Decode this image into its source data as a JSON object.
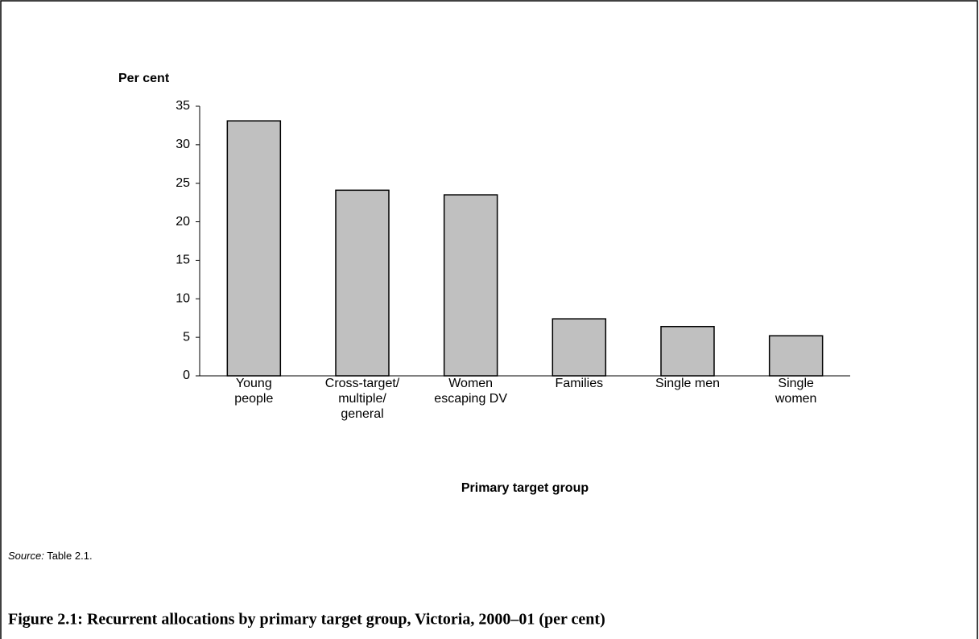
{
  "chart_data": {
    "type": "bar",
    "ylabel": "Per cent",
    "xlabel": "Primary target group",
    "categories": [
      "Young\npeople",
      "Cross-target/\nmultiple/\ngeneral",
      "Women\nescaping DV",
      "Families",
      "Single men",
      "Single\nwomen"
    ],
    "values": [
      33.1,
      24.1,
      23.5,
      7.4,
      6.4,
      5.2
    ],
    "color": "#c0c0c0",
    "ylim": [
      0,
      35
    ],
    "yticks": [
      0,
      5,
      10,
      15,
      20,
      25,
      30,
      35
    ],
    "grid": false,
    "source_label": "Source:",
    "source_text": "Table 2.1.",
    "caption": "Figure 2.1: Recurrent allocations by primary target group, Victoria, 2000–01 (per cent)"
  }
}
